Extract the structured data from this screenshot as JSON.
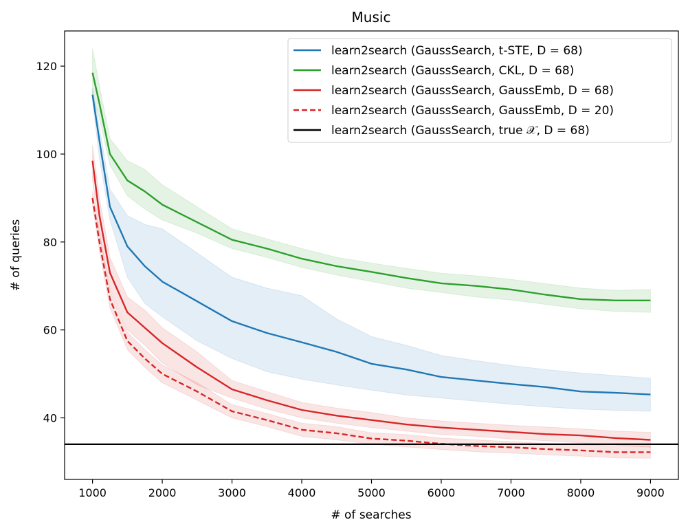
{
  "chart_data": {
    "type": "line",
    "title": "Music",
    "xlabel": "# of searches",
    "ylabel": "# of queries",
    "xlim": [
      600,
      9400
    ],
    "ylim": [
      26,
      128
    ],
    "xticks": [
      1000,
      2000,
      3000,
      4000,
      5000,
      6000,
      7000,
      8000,
      9000
    ],
    "yticks": [
      40,
      60,
      80,
      100,
      120
    ],
    "legend_position": "top-right",
    "x": [
      1000,
      1100,
      1250,
      1500,
      1750,
      2000,
      2500,
      3000,
      3500,
      4000,
      4500,
      5000,
      5500,
      6000,
      6500,
      7000,
      7500,
      8000,
      8500,
      9000
    ],
    "series": [
      {
        "name": "learn2search (GaussSearch, t-STE, D = 68)",
        "color": "#1f77b4",
        "style": "solid",
        "values": [
          113.5,
          103,
          88,
          79,
          74.5,
          71,
          66.5,
          62,
          59.3,
          57.2,
          55,
          52.3,
          51,
          49.3,
          48.5,
          47.7,
          47,
          46,
          45.7,
          45.3
        ],
        "lower": [
          112,
          99,
          85,
          72,
          66,
          63,
          57.5,
          53.5,
          50.5,
          48.8,
          47.5,
          46.3,
          45.2,
          44.5,
          43.8,
          43.1,
          42.5,
          42,
          41.7,
          41.5
        ],
        "upper": [
          115,
          106,
          92,
          86,
          84,
          83,
          77.5,
          72,
          69.5,
          67.8,
          62.5,
          58.5,
          56.5,
          54.2,
          53,
          51.9,
          51,
          50.2,
          49.6,
          49
        ]
      },
      {
        "name": "learn2search (GaussSearch, CKL, D = 68)",
        "color": "#2ca02c",
        "style": "solid",
        "values": [
          118.5,
          111.5,
          100,
          94,
          91.5,
          88.5,
          84.5,
          80.5,
          78.5,
          76.2,
          74.5,
          73.2,
          71.8,
          70.6,
          70,
          69.2,
          68,
          67,
          66.7,
          66.7
        ],
        "lower": [
          113.5,
          108,
          97.5,
          90.5,
          87.5,
          85,
          82,
          78.5,
          76.5,
          74.2,
          72.5,
          71,
          69.5,
          68.5,
          67.5,
          66.8,
          65.8,
          64.8,
          64.2,
          64
        ],
        "upper": [
          124,
          115.5,
          103.5,
          98.5,
          96.5,
          93,
          88,
          83,
          80.7,
          78.5,
          76.5,
          75.2,
          74,
          72.9,
          72.3,
          71.5,
          70.5,
          69.5,
          69,
          69.2
        ]
      },
      {
        "name": "learn2search (GaussSearch, GaussEmb, D = 68)",
        "color": "#d62728",
        "style": "solid",
        "values": [
          98.5,
          86,
          73,
          64,
          60.5,
          57,
          51.5,
          46.5,
          44,
          41.8,
          40.5,
          39.5,
          38.5,
          37.8,
          37.3,
          36.8,
          36.3,
          36,
          35.4,
          35
        ],
        "lower": [
          94,
          82,
          69.5,
          60,
          56.5,
          52.5,
          47.5,
          44.5,
          42,
          40,
          38.8,
          37.8,
          37,
          36.2,
          35.8,
          35.2,
          34.8,
          34.3,
          33.8,
          33.3
        ],
        "upper": [
          102,
          90,
          76.5,
          67.5,
          64.5,
          60.5,
          55,
          48.5,
          46,
          43.5,
          42.2,
          41.2,
          40,
          39.3,
          38.8,
          38.3,
          37.9,
          37.5,
          37,
          36.7
        ]
      },
      {
        "name": "learn2search (GaussSearch, GaussEmb, D = 20)",
        "color": "#d62728",
        "style": "dashed",
        "values": [
          90,
          80,
          67,
          57.5,
          53.5,
          50,
          46,
          41.5,
          39.5,
          37.3,
          36.5,
          35.3,
          34.8,
          34.1,
          33.6,
          33.3,
          32.9,
          32.6,
          32.2,
          32.2
        ],
        "lower": [
          88.5,
          78,
          65,
          55.5,
          51.5,
          48,
          44,
          40,
          38,
          35.8,
          35,
          34,
          33.4,
          32.8,
          32.3,
          32,
          31.6,
          31.3,
          30.9,
          30.8
        ],
        "upper": [
          91.5,
          82,
          69,
          59.5,
          55.5,
          52,
          48,
          43,
          41,
          38.8,
          38,
          36.6,
          36.2,
          35.4,
          35,
          34.6,
          34.2,
          33.9,
          33.6,
          33.6
        ]
      },
      {
        "name": "learn2search (GaussSearch, true 𝒳, D = 68)",
        "color": "#000000",
        "style": "hline",
        "y": 34
      }
    ]
  }
}
